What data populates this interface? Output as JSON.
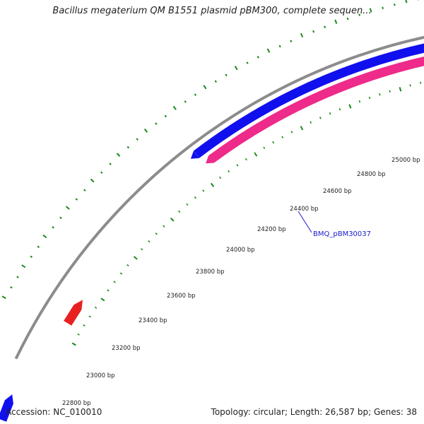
{
  "header": {
    "title": "Bacillus megaterium QM B1551 plasmid pBM300, complete sequen..."
  },
  "footer": {
    "accession": "Accession: NC_010010",
    "summary": "Topology: circular; Length: 26,587 bp; Genes: 38"
  },
  "map": {
    "tick_labels": [
      "22800 bp",
      "23000 bp",
      "23200 bp",
      "23400 bp",
      "23600 bp",
      "23800 bp",
      "24000 bp",
      "24200 bp",
      "24400 bp",
      "24600 bp",
      "24800 bp",
      "25000 bp"
    ],
    "gene_label": "BMQ_pBM30037",
    "colors": {
      "backbone": "#8c8c8c",
      "forward_strand": "#1010ee",
      "reverse_strand": "#ee2a8a",
      "cds_red": "#e82020",
      "tick_green": "#1a8a1a",
      "gene_label": "#1a1acc"
    }
  }
}
